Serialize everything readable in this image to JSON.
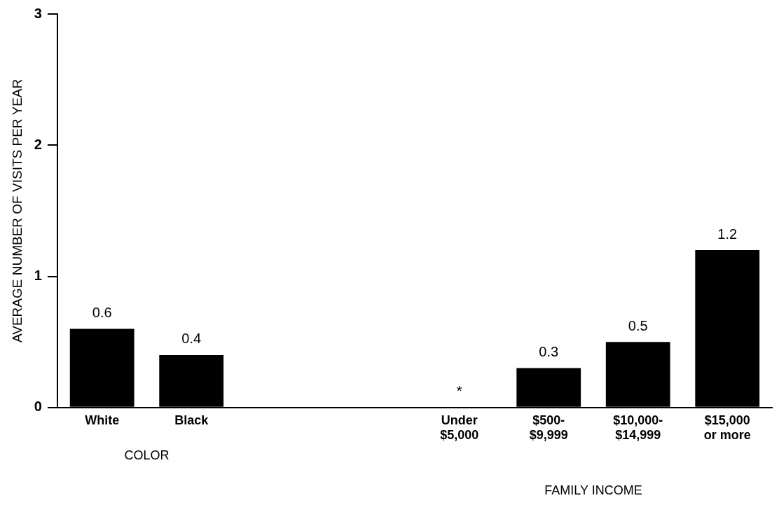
{
  "chart_data": {
    "type": "bar",
    "ylabel": "AVERAGE NUMBER OF VISITS PER YEAR",
    "categories": [
      "White",
      "Black",
      null,
      null,
      "Under\n$5,000",
      "$500-\n$9,999",
      "$10,000-\n$14,999",
      "$15,000\nor more"
    ],
    "values": [
      0.6,
      0.4,
      null,
      null,
      null,
      0.3,
      0.5,
      1.2
    ],
    "value_labels": [
      "0.6",
      "0.4",
      null,
      null,
      "*",
      "0.3",
      "0.5",
      "1.2"
    ],
    "color": "#000000",
    "ylim": [
      0,
      3
    ],
    "yticks": [
      0,
      1,
      2,
      3
    ],
    "grid": false,
    "annotations": [
      "COLOR",
      "FAMILY INCOME"
    ]
  }
}
